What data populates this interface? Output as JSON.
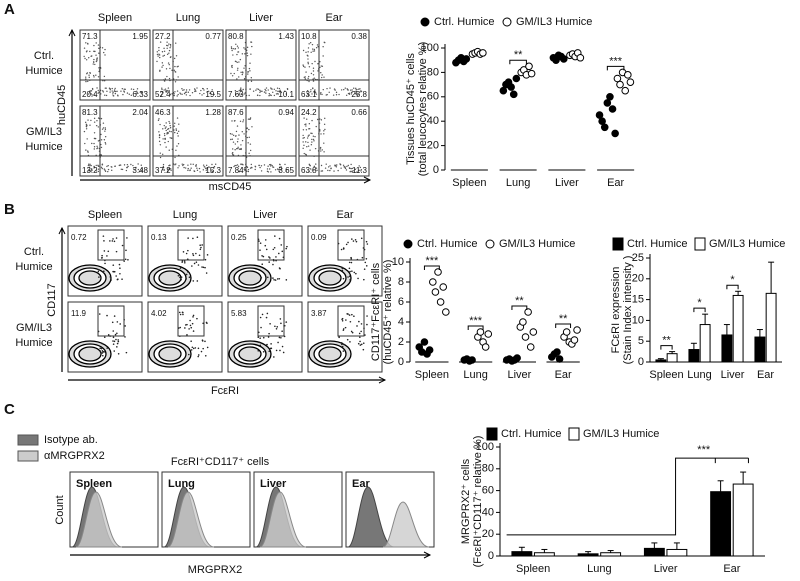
{
  "letters": [
    "A",
    "B",
    "C"
  ],
  "flow_a": {
    "columns": [
      "Spleen",
      "Lung",
      "Liver",
      "Ear"
    ],
    "rows": [
      [
        "Ctrl.",
        "Humice"
      ],
      [
        "GM/IL3",
        "Humice"
      ]
    ],
    "y_label": "huCD45",
    "x_label": "msCD45",
    "quadrants": [
      [
        [
          71.3,
          1.95,
          20.4,
          6.33
        ],
        [
          27.2,
          0.77,
          52.4,
          19.5
        ],
        [
          80.8,
          1.43,
          7.63,
          10.1
        ],
        [
          10.8,
          0.38,
          63.1,
          25.8
        ]
      ],
      [
        [
          81.3,
          2.04,
          13.2,
          3.48
        ],
        [
          46.3,
          1.28,
          37.2,
          15.3
        ],
        [
          87.6,
          0.94,
          7.84,
          3.65
        ],
        [
          24.2,
          0.66,
          63.8,
          11.3
        ]
      ]
    ]
  },
  "flow_b": {
    "columns": [
      "Spleen",
      "Lung",
      "Liver",
      "Ear"
    ],
    "rows": [
      [
        "Ctrl.",
        "Humice"
      ],
      [
        "GM/IL3",
        "Humice"
      ]
    ],
    "y_label": "CD117",
    "x_label": "FcεRI",
    "gates": [
      [
        0.72,
        0.13,
        0.25,
        0.09
      ],
      [
        11.9,
        4.02,
        5.83,
        3.87
      ]
    ]
  },
  "histograms_c": {
    "legend": [
      "Isotype ab.",
      "αMRGPRX2"
    ],
    "title": "FcεRI⁺CD117⁺ cells",
    "columns": [
      "Spleen",
      "Lung",
      "Liver",
      "Ear"
    ],
    "y_label": "Count",
    "x_label": "MRGPRX2"
  },
  "chart_data": [
    {
      "type": "dot",
      "categories": [
        "Spleen",
        "Lung",
        "Liver",
        "Ear"
      ],
      "y_label": [
        "Tissues huCD45⁺ cells",
        "(total leucocytes relative %)"
      ],
      "ylim": [
        0,
        100
      ],
      "yticks": [
        0,
        20,
        40,
        60,
        80,
        100
      ],
      "series": [
        {
          "name": "Ctrl. Humice",
          "color": "#000000",
          "values": [
            [
              88,
              90,
              92,
              89,
              91
            ],
            [
              65,
              70,
              72,
              68,
              62,
              75
            ],
            [
              92,
              90,
              94,
              93,
              91
            ],
            [
              45,
              40,
              35,
              55,
              60,
              50,
              30
            ]
          ]
        },
        {
          "name": "GM/IL3 Humice",
          "color": "#ffffff",
          "values": [
            [
              95,
              96,
              97,
              95,
              96
            ],
            [
              80,
              82,
              78,
              85,
              79
            ],
            [
              94,
              95,
              93,
              96,
              92
            ],
            [
              75,
              70,
              80,
              65,
              78,
              72
            ]
          ]
        }
      ],
      "significance": [
        {
          "from": 1,
          "to": 1,
          "label": "**"
        },
        {
          "from": 3,
          "to": 3,
          "label": "***"
        }
      ]
    },
    {
      "type": "dot",
      "categories": [
        "Spleen",
        "Lung",
        "Liver",
        "Ear"
      ],
      "y_label": [
        "CD117⁺FcεRI⁺ cells",
        "(huCD45⁺ relative %)"
      ],
      "ylim": [
        0,
        10
      ],
      "yticks": [
        0,
        2,
        4,
        6,
        8,
        10
      ],
      "series": [
        {
          "name": "Ctrl. Humice",
          "color": "#000000",
          "values": [
            [
              1.5,
              1,
              2,
              0.8,
              1.2
            ],
            [
              0.2,
              0.3,
              0.1,
              0.2
            ],
            [
              0.2,
              0.3,
              0.1,
              0.2,
              0.4
            ],
            [
              0.5,
              0.8,
              1,
              0.3
            ]
          ]
        },
        {
          "name": "GM/IL3 Humice",
          "color": "#ffffff",
          "values": [
            [
              8,
              7,
              9,
              6,
              7.5,
              5
            ],
            [
              2.5,
              3,
              2,
              1.5,
              2.8
            ],
            [
              3.5,
              4,
              2.5,
              5,
              1.5,
              3
            ],
            [
              2.5,
              3,
              2,
              1.8,
              2.2,
              3.2
            ]
          ]
        }
      ],
      "significance": [
        {
          "from": 0,
          "to": 0,
          "label": "***"
        },
        {
          "from": 1,
          "to": 1,
          "label": "***"
        },
        {
          "from": 2,
          "to": 2,
          "label": "**"
        },
        {
          "from": 3,
          "to": 3,
          "label": "**"
        }
      ]
    },
    {
      "type": "bar",
      "categories": [
        "Spleen",
        "Lung",
        "Liver",
        "Ear"
      ],
      "y_label": [
        "FCεRI expression",
        "(Stain Index intensity )"
      ],
      "ylim": [
        0,
        25
      ],
      "yticks": [
        0,
        5,
        10,
        15,
        20,
        25
      ],
      "series": [
        {
          "name": "Ctrl. Humice",
          "color": "#000000",
          "values": [
            0.5,
            3,
            6.5,
            6
          ],
          "errors": [
            0.3,
            1.5,
            2.5,
            1.8
          ]
        },
        {
          "name": "GM/IL3 Humice",
          "color": "#ffffff",
          "values": [
            2,
            9,
            16,
            16.5
          ],
          "errors": [
            0.5,
            2.5,
            1,
            7.5
          ]
        }
      ],
      "significance": [
        {
          "from": 0,
          "to": 0,
          "label": "**"
        },
        {
          "from": 1,
          "to": 1,
          "label": "*"
        },
        {
          "from": 2,
          "to": 2,
          "label": "*"
        }
      ]
    },
    {
      "type": "bar",
      "categories": [
        "Spleen",
        "Lung",
        "Liver",
        "Ear"
      ],
      "y_label": [
        "MRGPRX2⁺ cells",
        "(FcεRI⁺CD117⁺ relative %)"
      ],
      "ylim": [
        0,
        100
      ],
      "yticks": [
        0,
        20,
        40,
        60,
        80,
        100
      ],
      "series": [
        {
          "name": "Ctrl. Humice",
          "color": "#000000",
          "values": [
            4,
            2,
            7,
            59
          ],
          "errors": [
            4,
            2,
            5,
            10
          ]
        },
        {
          "name": "GM/IL3 Humice",
          "color": "#ffffff",
          "values": [
            3,
            3,
            6,
            66
          ],
          "errors": [
            3,
            2,
            6,
            11
          ]
        }
      ],
      "significance": [
        {
          "from": 0,
          "to": 3,
          "label": "***"
        }
      ]
    }
  ]
}
